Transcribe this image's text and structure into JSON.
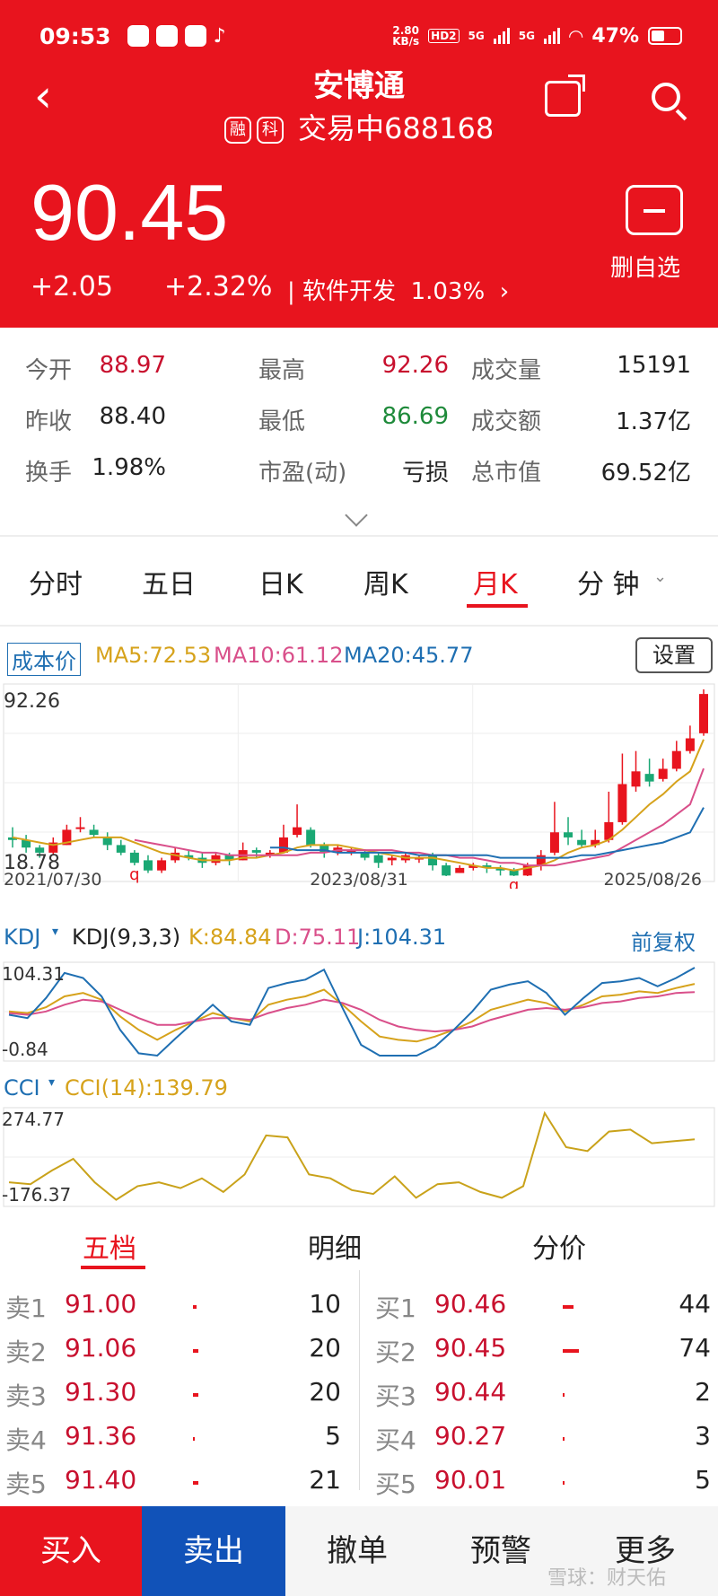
{
  "status": {
    "time": "09:53",
    "net_speed": "2.80",
    "net_unit": "KB/s",
    "hd": "HD2",
    "sig1": "5G",
    "sig2": "5G",
    "battery": "47%"
  },
  "header": {
    "title": "安博通",
    "tag1": "融",
    "tag2": "科",
    "status": "交易中",
    "code": "688168",
    "price": "90.45",
    "change": "+2.05",
    "change_pct": "+2.32%",
    "industry": "软件开发",
    "industry_pct": "1.03%",
    "watch_label": "删自选"
  },
  "stats": [
    [
      {
        "l": "今开",
        "v": "88.97",
        "c": "#c8102e"
      },
      {
        "l": "最高",
        "v": "92.26",
        "c": "#c8102e"
      },
      {
        "l": "成交量",
        "v": "15191",
        "c": "#222"
      }
    ],
    [
      {
        "l": "昨收",
        "v": "88.40",
        "c": "#222"
      },
      {
        "l": "最低",
        "v": "86.69",
        "c": "#1e8a3a"
      },
      {
        "l": "成交额",
        "v": "1.37亿",
        "c": "#222"
      }
    ],
    [
      {
        "l": "换手",
        "v": "1.98%",
        "c": "#222"
      },
      {
        "l": "市盈(动)",
        "v": "亏损",
        "c": "#222"
      },
      {
        "l": "总市值",
        "v": "69.52亿",
        "c": "#222"
      }
    ]
  ],
  "tabs": [
    "分时",
    "五日",
    "日K",
    "周K",
    "月K",
    "分 钟"
  ],
  "active_tab": "月K",
  "legend": {
    "cost": "成本价",
    "ma5": "MA5:72.53",
    "ma10": "MA10:61.12",
    "ma20": "MA20:45.77",
    "settings": "设置"
  },
  "colors": {
    "up": "#e8141e",
    "down": "#1aa874",
    "ma5": "#d6a21b",
    "ma10": "#d94f8a",
    "ma20": "#1f6fb2"
  },
  "chart_data": [
    {
      "type": "candlestick",
      "ylim": [
        18.78,
        92.26
      ],
      "y_top_label": "92.26",
      "y_bottom_label": "18.78",
      "x_labels": [
        "2021/07/30",
        "2023/08/31",
        "2025/08/26"
      ],
      "markers": [
        "q",
        "q"
      ],
      "candles": [
        [
          34,
          33,
          38,
          30
        ],
        [
          33,
          30,
          35,
          28
        ],
        [
          30,
          28,
          31,
          26
        ],
        [
          28,
          32,
          34,
          27
        ],
        [
          31,
          37,
          39,
          31
        ],
        [
          38,
          38,
          42,
          36
        ],
        [
          37,
          35,
          39,
          34
        ],
        [
          34,
          31,
          36,
          29
        ],
        [
          31,
          28,
          33,
          27
        ],
        [
          28,
          24,
          29,
          23
        ],
        [
          25,
          21,
          27,
          20
        ],
        [
          21,
          25,
          26,
          20
        ],
        [
          25,
          28,
          30,
          24
        ],
        [
          27,
          26,
          29,
          25
        ],
        [
          26,
          24,
          28,
          22
        ],
        [
          24,
          27,
          28,
          23
        ],
        [
          27,
          25,
          28,
          23
        ],
        [
          25,
          29,
          32,
          25
        ],
        [
          29,
          28,
          30,
          26
        ],
        [
          27,
          28,
          29,
          26
        ],
        [
          28,
          34,
          39,
          28
        ],
        [
          35,
          38,
          47,
          34
        ],
        [
          37,
          31,
          38,
          30
        ],
        [
          31,
          28,
          32,
          26
        ],
        [
          28,
          30,
          31,
          27
        ],
        [
          29,
          29,
          30,
          27
        ],
        [
          28,
          26,
          29,
          25
        ],
        [
          27,
          24,
          28,
          22
        ],
        [
          25,
          26,
          27,
          23
        ],
        [
          25,
          27,
          28,
          24
        ],
        [
          26,
          26,
          27,
          24
        ],
        [
          27,
          23,
          28,
          21
        ],
        [
          23,
          19,
          24,
          18.78
        ],
        [
          20,
          22,
          23,
          20
        ],
        [
          22,
          23,
          24,
          21
        ],
        [
          23,
          22,
          24,
          20
        ],
        [
          22,
          21,
          23,
          19
        ],
        [
          21,
          19,
          22,
          18.78
        ],
        [
          19,
          23,
          24,
          18.78
        ],
        [
          23,
          27,
          29,
          21
        ],
        [
          28,
          36,
          48,
          27
        ],
        [
          36,
          34,
          42,
          31
        ],
        [
          33,
          31,
          37,
          30
        ],
        [
          31,
          33,
          37,
          30
        ],
        [
          33,
          40,
          52,
          32
        ],
        [
          40,
          55,
          67,
          39
        ],
        [
          54,
          60,
          68,
          52
        ],
        [
          59,
          56,
          65,
          54
        ],
        [
          57,
          61,
          65,
          56
        ],
        [
          61,
          68,
          72,
          60
        ],
        [
          68,
          73,
          78,
          67
        ],
        [
          75,
          90.45,
          92.26,
          74
        ]
      ],
      "ma5": [
        34,
        33,
        32,
        31,
        32,
        33,
        34,
        34,
        34,
        32,
        30,
        28,
        27,
        26,
        25,
        25,
        25,
        26,
        26,
        27,
        28,
        30,
        31,
        31,
        31,
        30,
        29,
        28,
        27,
        26,
        26,
        26,
        25,
        24,
        23,
        22,
        22,
        21,
        22,
        23,
        25,
        28,
        30,
        31,
        33,
        37,
        42,
        47,
        51,
        56,
        60,
        72.53
      ],
      "ma10": [
        null,
        null,
        null,
        null,
        null,
        null,
        null,
        null,
        null,
        33,
        32,
        31,
        30,
        29,
        28,
        28,
        27,
        27,
        27,
        27,
        27,
        27,
        28,
        28,
        29,
        29,
        29,
        29,
        29,
        28,
        28,
        27,
        27,
        26,
        26,
        25,
        24,
        24,
        23,
        23,
        23,
        24,
        25,
        26,
        27,
        30,
        33,
        36,
        39,
        43,
        47,
        61.12
      ],
      "ma20": [
        null,
        null,
        null,
        null,
        null,
        null,
        null,
        null,
        null,
        null,
        null,
        null,
        null,
        null,
        null,
        null,
        null,
        null,
        null,
        30,
        30,
        29,
        29,
        29,
        28,
        28,
        28,
        28,
        28,
        28,
        27,
        27,
        27,
        27,
        27,
        27,
        26,
        26,
        26,
        26,
        26,
        26,
        27,
        27,
        28,
        29,
        30,
        31,
        32,
        34,
        36,
        45.77
      ]
    },
    {
      "type": "line",
      "title": "KDJ",
      "params": "KDJ(9,3,3)",
      "ylim": [
        -0.84,
        104.31
      ],
      "y_top_label": "104.31",
      "y_bottom_label": "-0.84",
      "mode": "前复权",
      "series": [
        {
          "name": "K:84.84",
          "values": [
            52,
            50,
            57,
            70,
            74,
            66,
            46,
            30,
            18,
            30,
            40,
            50,
            44,
            40,
            60,
            66,
            70,
            78,
            60,
            40,
            22,
            18,
            16,
            22,
            30,
            40,
            54,
            60,
            66,
            62,
            52,
            60,
            70,
            72,
            76,
            74,
            80,
            84.84
          ]
        },
        {
          "name": "D:75.11",
          "values": [
            50,
            48,
            52,
            60,
            66,
            64,
            54,
            44,
            36,
            36,
            40,
            44,
            44,
            42,
            50,
            56,
            60,
            66,
            62,
            54,
            42,
            34,
            30,
            28,
            30,
            34,
            42,
            48,
            54,
            56,
            54,
            57,
            62,
            64,
            68,
            70,
            74,
            75.11
          ]
        },
        {
          "name": "J:104.31",
          "values": [
            48,
            44,
            68,
            98,
            92,
            70,
            30,
            2,
            -0.84,
            20,
            40,
            60,
            40,
            36,
            80,
            86,
            90,
            102,
            56,
            12,
            -0.84,
            -0.84,
            -0.84,
            10,
            30,
            52,
            78,
            84,
            88,
            74,
            48,
            68,
            86,
            88,
            92,
            82,
            92,
            104.31
          ]
        }
      ]
    },
    {
      "type": "line",
      "title": "CCI",
      "params": "CCI(14)",
      "ylim": [
        -176.37,
        274.77
      ],
      "y_top_label": "274.77",
      "y_bottom_label": "-176.37",
      "series": [
        {
          "name": "CCI(14):139.79",
          "values": [
            -80,
            -90,
            -20,
            40,
            -80,
            -170,
            -100,
            -80,
            -110,
            -60,
            -130,
            -40,
            160,
            150,
            -40,
            -60,
            -120,
            -140,
            -50,
            -160,
            -90,
            -80,
            -130,
            -160,
            -100,
            274.77,
            100,
            80,
            180,
            190,
            120,
            130,
            139.79
          ]
        }
      ]
    }
  ],
  "kdj_label": "KDJ",
  "cci_label": "CCI",
  "orderbook": {
    "tabs": [
      "五档",
      "明细",
      "分价"
    ],
    "asks": [
      {
        "l": "卖1",
        "p": "91.00",
        "q": "10",
        "w": 4
      },
      {
        "l": "卖2",
        "p": "91.06",
        "q": "20",
        "w": 6
      },
      {
        "l": "卖3",
        "p": "91.30",
        "q": "20",
        "w": 6
      },
      {
        "l": "卖4",
        "p": "91.36",
        "q": "5",
        "w": 2
      },
      {
        "l": "卖5",
        "p": "91.40",
        "q": "21",
        "w": 6
      }
    ],
    "bids": [
      {
        "l": "买1",
        "p": "90.46",
        "q": "44",
        "w": 12
      },
      {
        "l": "买2",
        "p": "90.45",
        "q": "74",
        "w": 18
      },
      {
        "l": "买3",
        "p": "90.44",
        "q": "2",
        "w": 2
      },
      {
        "l": "买4",
        "p": "90.27",
        "q": "3",
        "w": 2
      },
      {
        "l": "买5",
        "p": "90.01",
        "q": "5",
        "w": 2
      }
    ]
  },
  "bottom": {
    "buy": "买入",
    "sell": "卖出",
    "cancel": "撤单",
    "alert": "预警",
    "more": "更多"
  },
  "watermark": "雪球：财天佑"
}
